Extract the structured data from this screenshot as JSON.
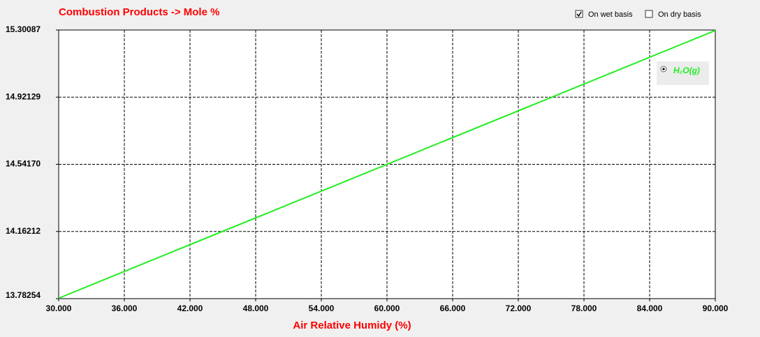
{
  "chart_data": {
    "type": "line",
    "title": "Combustion Products -> Mole %",
    "x_label": "Air Relative Humidy (%)",
    "x": [
      30,
      90
    ],
    "series": [
      {
        "name": "H₂O(g)",
        "color": "#22ee22",
        "values": [
          13.785,
          15.298
        ]
      }
    ],
    "xlim": [
      30,
      90
    ],
    "xticks": [
      {
        "value": 30,
        "label": "30.000"
      },
      {
        "value": 36,
        "label": "36.000"
      },
      {
        "value": 42,
        "label": "42.000"
      },
      {
        "value": 48,
        "label": "48.000"
      },
      {
        "value": 54,
        "label": "54.000"
      },
      {
        "value": 60,
        "label": "60.000"
      },
      {
        "value": 66,
        "label": "66.000"
      },
      {
        "value": 72,
        "label": "72.000"
      },
      {
        "value": 78,
        "label": "78.000"
      },
      {
        "value": 84,
        "label": "84.000"
      },
      {
        "value": 90,
        "label": "90.000"
      }
    ],
    "ylim": [
      13.78254,
      15.30087
    ],
    "yticks": [
      13.78254,
      14.16212,
      {
        "value": 14.5417,
        "label": "14.54170"
      },
      14.92129,
      15.30087
    ],
    "grid": true
  },
  "controls": [
    {
      "label": "On wet basis",
      "checked": true
    },
    {
      "label": "On dry basis",
      "checked": false
    }
  ]
}
